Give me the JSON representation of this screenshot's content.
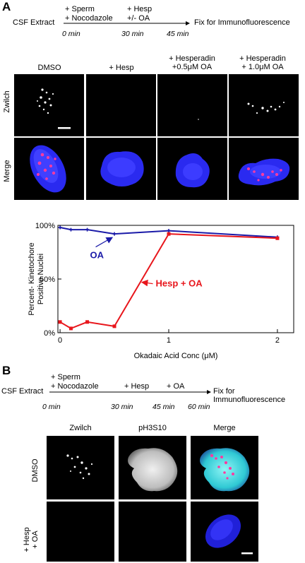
{
  "panel_a": {
    "letter": "A",
    "timeline": {
      "start_label": "CSF Extract",
      "step1": [
        "+ Sperm",
        "+ Nocodazole"
      ],
      "step2": [
        "+ Hesp",
        "+/- OA"
      ],
      "end_label": "Fix for Immunofluorescence",
      "times": [
        "0 min",
        "30 min",
        "45 min"
      ]
    },
    "columns": [
      "DMSO",
      "+ Hesp",
      "+ Hesperadin\n+0.5μM OA",
      "+ Hesperadin\n+ 1.0μM OA"
    ],
    "rows": [
      "Zwilch",
      "Merge"
    ]
  },
  "chart_data": {
    "type": "line",
    "xlabel": "Okadaic Acid Conc (μM)",
    "ylabel": "Percent- Kinetochore Positive Nuclei",
    "xlim": [
      -0.02,
      2.15
    ],
    "ylim": [
      0,
      100
    ],
    "xticks": [
      "0",
      "1",
      "2"
    ],
    "yticks": [
      "0%",
      "50%",
      "100%"
    ],
    "grid": false,
    "series": [
      {
        "name": "OA",
        "color": "#1a1aa8",
        "x": [
          0,
          0.1,
          0.25,
          0.5,
          1,
          2
        ],
        "y": [
          98,
          96,
          96,
          92,
          95,
          89
        ]
      },
      {
        "name": "Hesp + OA",
        "color": "#e8161c",
        "x": [
          0,
          0.1,
          0.25,
          0.5,
          1,
          2
        ],
        "y": [
          10,
          4,
          10,
          6,
          92,
          88
        ]
      }
    ]
  },
  "panel_b": {
    "letter": "B",
    "timeline": {
      "start_label": "CSF Extract",
      "step1": [
        "+ Sperm",
        "+ Nocodazole"
      ],
      "step2": "+ Hesp",
      "step3": "+ OA",
      "end_label": "Fix for Immunofluorescence",
      "times": [
        "0 min",
        "30 min",
        "45 min",
        "60 min"
      ]
    },
    "columns": [
      "Zwilch",
      "pH3S10",
      "Merge"
    ],
    "rows": [
      "DMSO",
      "+ Hesp\n+ OA"
    ]
  }
}
